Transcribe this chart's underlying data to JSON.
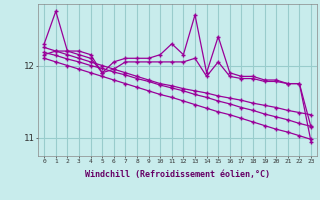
{
  "xlabel": "Windchill (Refroidissement éolien,°C)",
  "bg_color": "#c8ecec",
  "line_color": "#990099",
  "grid_color": "#99cccc",
  "hours": [
    0,
    1,
    2,
    3,
    4,
    5,
    6,
    7,
    8,
    9,
    10,
    11,
    12,
    13,
    14,
    15,
    16,
    17,
    18,
    19,
    20,
    21,
    22,
    23
  ],
  "series_noisy": [
    12.3,
    12.75,
    12.2,
    12.2,
    12.15,
    11.9,
    12.05,
    12.1,
    12.1,
    12.1,
    12.15,
    12.3,
    12.15,
    12.7,
    11.9,
    12.4,
    11.9,
    11.85,
    11.85,
    11.8,
    11.8,
    11.75,
    11.75,
    10.95
  ],
  "series_mid1": [
    12.15,
    12.2,
    12.2,
    12.15,
    12.1,
    11.9,
    11.95,
    12.05,
    12.05,
    12.05,
    12.05,
    12.05,
    12.05,
    12.1,
    11.85,
    12.05,
    11.85,
    11.82,
    11.82,
    11.78,
    11.78,
    11.75,
    11.75,
    11.15
  ],
  "series_trend1": [
    12.25,
    12.2,
    12.15,
    12.1,
    12.05,
    12.0,
    11.95,
    11.9,
    11.85,
    11.8,
    11.75,
    11.72,
    11.68,
    11.65,
    11.62,
    11.58,
    11.55,
    11.52,
    11.48,
    11.45,
    11.42,
    11.38,
    11.35,
    11.32
  ],
  "series_trend2": [
    12.18,
    12.14,
    12.09,
    12.05,
    12.0,
    11.96,
    11.91,
    11.87,
    11.82,
    11.78,
    11.73,
    11.69,
    11.65,
    11.6,
    11.56,
    11.51,
    11.47,
    11.42,
    11.38,
    11.33,
    11.29,
    11.25,
    11.2,
    11.16
  ],
  "series_trend3": [
    12.1,
    12.05,
    12.0,
    11.95,
    11.9,
    11.85,
    11.8,
    11.75,
    11.7,
    11.65,
    11.6,
    11.56,
    11.51,
    11.46,
    11.41,
    11.36,
    11.32,
    11.27,
    11.22,
    11.17,
    11.12,
    11.08,
    11.03,
    10.98
  ],
  "ylim": [
    10.75,
    12.85
  ],
  "yticks": [
    11.0,
    12.0
  ],
  "xticks": [
    0,
    1,
    2,
    3,
    4,
    5,
    6,
    7,
    8,
    9,
    10,
    11,
    12,
    13,
    14,
    15,
    16,
    17,
    18,
    19,
    20,
    21,
    22,
    23
  ]
}
